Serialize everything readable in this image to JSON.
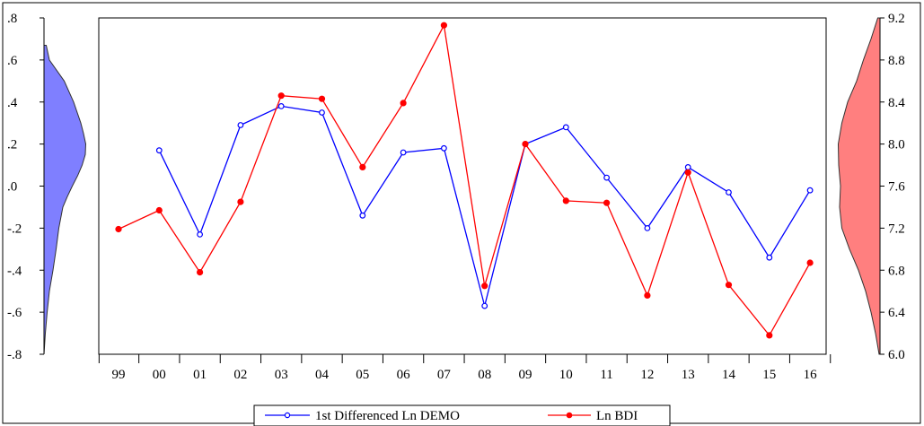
{
  "chart_data": {
    "type": "line",
    "categories": [
      "99",
      "00",
      "01",
      "02",
      "03",
      "04",
      "05",
      "06",
      "07",
      "08",
      "09",
      "10",
      "11",
      "12",
      "13",
      "14",
      "15",
      "16"
    ],
    "series": [
      {
        "name": "1st Differenced Ln DEMO",
        "axis": "left",
        "color": "#0000ff",
        "marker": "open-circle",
        "values": [
          null,
          0.17,
          -0.23,
          0.29,
          0.38,
          0.35,
          -0.14,
          0.16,
          0.18,
          -0.57,
          0.2,
          0.28,
          0.04,
          -0.2,
          0.09,
          -0.03,
          -0.34,
          -0.02
        ]
      },
      {
        "name": "Ln BDI",
        "axis": "right",
        "color": "#ff0000",
        "marker": "filled-circle",
        "values": [
          7.19,
          7.37,
          6.78,
          7.45,
          8.46,
          8.43,
          7.78,
          8.39,
          9.13,
          6.65,
          8.0,
          7.46,
          7.44,
          6.56,
          7.73,
          6.66,
          6.18,
          6.87
        ]
      }
    ],
    "left_axis": {
      "ylim": [
        -0.8,
        0.8
      ],
      "ticks": [
        0.8,
        0.6,
        0.4,
        0.2,
        0.0,
        -0.2,
        -0.4,
        -0.6,
        -0.8
      ],
      "tick_labels": [
        ".8",
        ".6",
        ".4",
        ".2",
        ".0",
        "-.2",
        "-.4",
        "-.6",
        "-.8"
      ]
    },
    "right_axis": {
      "ylim": [
        6.0,
        9.2
      ],
      "ticks": [
        9.2,
        8.8,
        8.4,
        8.0,
        7.6,
        7.2,
        6.8,
        6.4,
        6.0
      ],
      "tick_labels": [
        "9.2",
        "8.8",
        "8.4",
        "8.0",
        "7.6",
        "7.2",
        "6.8",
        "6.4",
        "6.0"
      ]
    },
    "density_left": {
      "color": "#7f7fff",
      "y": [
        0.67,
        0.6,
        0.5,
        0.4,
        0.3,
        0.25,
        0.2,
        0.15,
        0.1,
        0.05,
        0.0,
        -0.05,
        -0.1,
        -0.2,
        -0.3,
        -0.4,
        -0.5,
        -0.6,
        -0.7,
        -0.8
      ],
      "density": [
        0.05,
        0.12,
        0.45,
        0.66,
        0.82,
        0.88,
        0.93,
        0.92,
        0.85,
        0.75,
        0.63,
        0.52,
        0.42,
        0.33,
        0.27,
        0.2,
        0.12,
        0.07,
        0.03,
        0.0
      ]
    },
    "density_right": {
      "color": "#ff7f7f",
      "y": [
        6.0,
        6.2,
        6.4,
        6.6,
        6.8,
        7.0,
        7.2,
        7.4,
        7.6,
        7.8,
        8.0,
        8.2,
        8.4,
        8.6,
        8.8,
        9.0,
        9.2
      ],
      "density": [
        0.02,
        0.1,
        0.2,
        0.32,
        0.48,
        0.68,
        0.85,
        0.9,
        0.88,
        0.92,
        0.93,
        0.85,
        0.72,
        0.52,
        0.37,
        0.2,
        0.05
      ]
    },
    "legend_position": "bottom-center",
    "grid": false
  }
}
